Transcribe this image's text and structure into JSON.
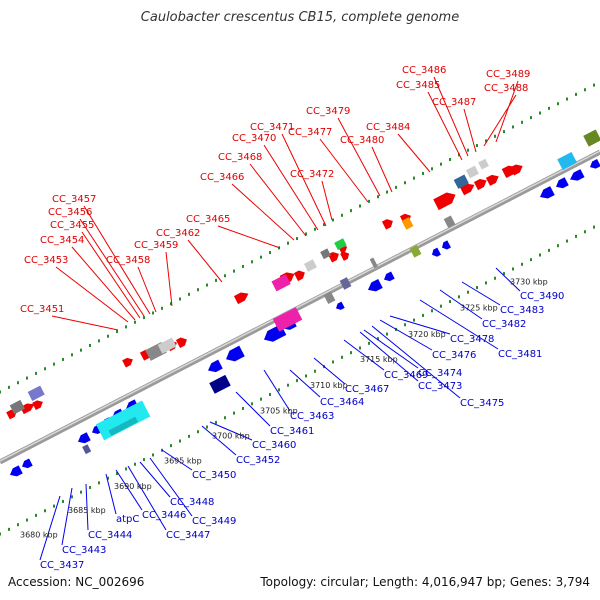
{
  "title": "Caulobacter crescentus CB15, complete genome",
  "footer": {
    "accession": "Accession: NC_002696",
    "summary": "Topology: circular; Length: 4,016,947 bp; Genes: 3,794"
  },
  "colors": {
    "forward": "#ee0000",
    "reverse": "#0000ee",
    "backbone": "#9a9a9a",
    "dots": "#2a8a2a",
    "label_forward": "#e00000",
    "label_reverse": "#0000cc"
  },
  "kbp_ticks": [
    "3680 kbp",
    "3685 kbp",
    "3690 kbp",
    "3695 kbp",
    "3700 kbp",
    "3705 kbp",
    "3710 kbp",
    "3715 kbp",
    "3720 kbp",
    "3725 kbp",
    "3730 kbp"
  ],
  "top_labels": [
    "CC_3451",
    "CC_3453",
    "CC_3454",
    "CC_3455",
    "CC_3456",
    "CC_3457",
    "CC_3458",
    "CC_3459",
    "CC_3462",
    "CC_3465",
    "CC_3466",
    "CC_3468",
    "CC_3470",
    "CC_3471",
    "CC_3472",
    "CC_3477",
    "CC_3479",
    "CC_3480",
    "CC_3484",
    "CC_3485",
    "CC_3486",
    "CC_3487",
    "CC_3488",
    "CC_3489"
  ],
  "bottom_labels": [
    "CC_3437",
    "CC_3443",
    "CC_3444",
    "atpC",
    "CC_3446",
    "CC_3447",
    "CC_3448",
    "CC_3449",
    "CC_3450",
    "CC_3452",
    "CC_3460",
    "CC_3461",
    "CC_3463",
    "CC_3464",
    "CC_3467",
    "CC_3469",
    "CC_3473",
    "CC_3474",
    "CC_3475",
    "CC_3476",
    "CC_3478",
    "CC_3481",
    "CC_3482",
    "CC_3483",
    "CC_3490"
  ]
}
